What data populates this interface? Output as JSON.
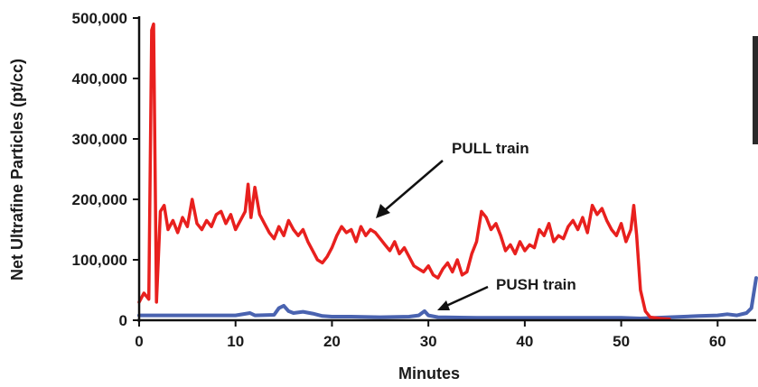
{
  "chart_data": {
    "type": "line",
    "title": "",
    "xlabel": "Minutes",
    "ylabel": "Net Ultrafine Particles (pt/cc)",
    "xlim": [
      0,
      64
    ],
    "ylim": [
      0,
      500000
    ],
    "x_ticks": [
      0,
      10,
      20,
      30,
      40,
      50,
      60
    ],
    "x_tick_labels": [
      "0",
      "10",
      "20",
      "30",
      "40",
      "50",
      "60"
    ],
    "y_ticks": [
      0,
      100000,
      200000,
      300000,
      400000,
      500000
    ],
    "y_tick_labels": [
      "0",
      "100,000",
      "200,000",
      "300,000",
      "400,000",
      "500,000"
    ],
    "grid": false,
    "series": [
      {
        "name": "PULL train",
        "color": "#e8201e",
        "points": [
          [
            0,
            30000
          ],
          [
            0.5,
            45000
          ],
          [
            1,
            35000
          ],
          [
            1.3,
            480000
          ],
          [
            1.5,
            490000
          ],
          [
            1.8,
            30000
          ],
          [
            2.2,
            180000
          ],
          [
            2.6,
            190000
          ],
          [
            3,
            150000
          ],
          [
            3.5,
            165000
          ],
          [
            4,
            145000
          ],
          [
            4.5,
            170000
          ],
          [
            5,
            155000
          ],
          [
            5.5,
            200000
          ],
          [
            6,
            160000
          ],
          [
            6.5,
            150000
          ],
          [
            7,
            165000
          ],
          [
            7.5,
            155000
          ],
          [
            8,
            175000
          ],
          [
            8.5,
            180000
          ],
          [
            9,
            160000
          ],
          [
            9.5,
            175000
          ],
          [
            10,
            150000
          ],
          [
            10.5,
            165000
          ],
          [
            11,
            180000
          ],
          [
            11.3,
            225000
          ],
          [
            11.6,
            170000
          ],
          [
            12,
            220000
          ],
          [
            12.5,
            175000
          ],
          [
            13,
            160000
          ],
          [
            13.5,
            145000
          ],
          [
            14,
            135000
          ],
          [
            14.5,
            155000
          ],
          [
            15,
            140000
          ],
          [
            15.5,
            165000
          ],
          [
            16,
            150000
          ],
          [
            16.5,
            140000
          ],
          [
            17,
            150000
          ],
          [
            17.5,
            130000
          ],
          [
            18,
            115000
          ],
          [
            18.5,
            100000
          ],
          [
            19,
            95000
          ],
          [
            19.5,
            105000
          ],
          [
            20,
            120000
          ],
          [
            20.5,
            140000
          ],
          [
            21,
            155000
          ],
          [
            21.5,
            145000
          ],
          [
            22,
            150000
          ],
          [
            22.5,
            130000
          ],
          [
            23,
            155000
          ],
          [
            23.5,
            140000
          ],
          [
            24,
            150000
          ],
          [
            24.5,
            145000
          ],
          [
            25,
            135000
          ],
          [
            25.5,
            125000
          ],
          [
            26,
            115000
          ],
          [
            26.5,
            130000
          ],
          [
            27,
            110000
          ],
          [
            27.5,
            120000
          ],
          [
            28,
            105000
          ],
          [
            28.5,
            90000
          ],
          [
            29,
            85000
          ],
          [
            29.5,
            80000
          ],
          [
            30,
            90000
          ],
          [
            30.5,
            75000
          ],
          [
            31,
            70000
          ],
          [
            31.5,
            85000
          ],
          [
            32,
            95000
          ],
          [
            32.5,
            80000
          ],
          [
            33,
            100000
          ],
          [
            33.5,
            75000
          ],
          [
            34,
            80000
          ],
          [
            34.5,
            110000
          ],
          [
            35,
            130000
          ],
          [
            35.5,
            180000
          ],
          [
            36,
            170000
          ],
          [
            36.5,
            150000
          ],
          [
            37,
            160000
          ],
          [
            37.5,
            140000
          ],
          [
            38,
            115000
          ],
          [
            38.5,
            125000
          ],
          [
            39,
            110000
          ],
          [
            39.5,
            130000
          ],
          [
            40,
            115000
          ],
          [
            40.5,
            125000
          ],
          [
            41,
            120000
          ],
          [
            41.5,
            150000
          ],
          [
            42,
            140000
          ],
          [
            42.5,
            160000
          ],
          [
            43,
            130000
          ],
          [
            43.5,
            140000
          ],
          [
            44,
            135000
          ],
          [
            44.5,
            155000
          ],
          [
            45,
            165000
          ],
          [
            45.5,
            150000
          ],
          [
            46,
            170000
          ],
          [
            46.5,
            145000
          ],
          [
            47,
            190000
          ],
          [
            47.5,
            175000
          ],
          [
            48,
            185000
          ],
          [
            48.5,
            165000
          ],
          [
            49,
            150000
          ],
          [
            49.5,
            140000
          ],
          [
            50,
            160000
          ],
          [
            50.5,
            130000
          ],
          [
            51,
            150000
          ],
          [
            51.3,
            190000
          ],
          [
            51.6,
            140000
          ],
          [
            52,
            50000
          ],
          [
            52.5,
            15000
          ],
          [
            53,
            5000
          ],
          [
            54,
            3000
          ],
          [
            55,
            2000
          ]
        ]
      },
      {
        "name": "PUSH train",
        "color": "#4a63b0",
        "points": [
          [
            0,
            8000
          ],
          [
            5,
            8000
          ],
          [
            10,
            8000
          ],
          [
            11.5,
            12000
          ],
          [
            12,
            8000
          ],
          [
            14,
            9000
          ],
          [
            14.5,
            20000
          ],
          [
            15,
            24000
          ],
          [
            15.5,
            15000
          ],
          [
            16,
            12000
          ],
          [
            17,
            14000
          ],
          [
            18,
            11000
          ],
          [
            19,
            7000
          ],
          [
            20,
            6000
          ],
          [
            22,
            6000
          ],
          [
            25,
            5000
          ],
          [
            28,
            6000
          ],
          [
            29,
            8000
          ],
          [
            29.6,
            15000
          ],
          [
            30,
            8000
          ],
          [
            31,
            5000
          ],
          [
            35,
            4000
          ],
          [
            40,
            4000
          ],
          [
            45,
            4000
          ],
          [
            50,
            4000
          ],
          [
            52,
            3000
          ],
          [
            55,
            5000
          ],
          [
            58,
            7000
          ],
          [
            60,
            8000
          ],
          [
            61,
            10000
          ],
          [
            62,
            8000
          ],
          [
            63,
            12000
          ],
          [
            63.5,
            20000
          ],
          [
            64,
            70000
          ]
        ]
      }
    ],
    "annotations": [
      {
        "text": "PULL train",
        "target_series": "PULL train"
      },
      {
        "text": "PUSH train",
        "target_series": "PUSH train"
      }
    ]
  }
}
